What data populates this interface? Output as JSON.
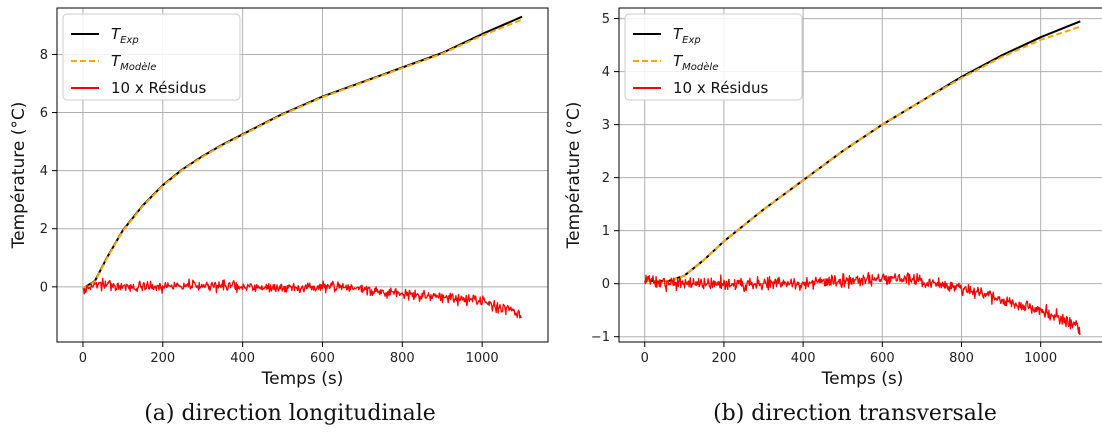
{
  "chart_data": [
    {
      "type": "line",
      "caption": "(a) direction longitudinale",
      "xlabel": "Temps (s)",
      "ylabel": "Température (°C)",
      "xlim": [
        -65,
        1165
      ],
      "ylim": [
        -1.9,
        9.6
      ],
      "xticks": [
        0,
        200,
        400,
        600,
        800,
        1000
      ],
      "yticks": [
        0,
        2,
        4,
        6,
        8
      ],
      "grid": true,
      "legend_position": "top-left",
      "series": [
        {
          "name": "T_Exp",
          "legend_main": "T",
          "legend_sub": "Exp",
          "color": "#000000",
          "style": "solid",
          "x": [
            0,
            30,
            60,
            100,
            150,
            200,
            250,
            300,
            350,
            400,
            500,
            600,
            700,
            800,
            900,
            1000,
            1100
          ],
          "y": [
            -0.05,
            0.2,
            1.0,
            1.95,
            2.8,
            3.5,
            4.05,
            4.5,
            4.9,
            5.25,
            5.95,
            6.55,
            7.05,
            7.55,
            8.05,
            8.7,
            9.3
          ]
        },
        {
          "name": "T_Modèle",
          "legend_main": "T",
          "legend_sub": "Modèle",
          "color": "#ffa500",
          "style": "dashed",
          "x": [
            0,
            30,
            60,
            100,
            150,
            200,
            250,
            300,
            350,
            400,
            500,
            600,
            700,
            800,
            900,
            1000,
            1100
          ],
          "y": [
            -0.05,
            0.18,
            0.98,
            1.93,
            2.78,
            3.48,
            4.03,
            4.48,
            4.88,
            5.23,
            5.93,
            6.53,
            7.03,
            7.53,
            8.03,
            8.65,
            9.2
          ]
        },
        {
          "name": "10 x Résidus",
          "legend_main": "10 x Résidus",
          "legend_sub": "",
          "color": "#ff0000",
          "style": "noisy",
          "noise": 0.09,
          "x": [
            0,
            50,
            100,
            200,
            300,
            400,
            500,
            600,
            650,
            700,
            800,
            900,
            1000,
            1050,
            1100
          ],
          "y": [
            -0.05,
            0.1,
            0.0,
            0.0,
            0.05,
            0.0,
            -0.05,
            0.0,
            0.0,
            -0.1,
            -0.25,
            -0.35,
            -0.5,
            -0.75,
            -0.95
          ]
        }
      ]
    },
    {
      "type": "line",
      "caption": "(b) direction transversale",
      "xlabel": "Temps (s)",
      "ylabel": "Température (°C)",
      "xlim": [
        -65,
        1165
      ],
      "ylim": [
        -1.1,
        5.2
      ],
      "xticks": [
        0,
        200,
        400,
        600,
        800,
        1000
      ],
      "yticks": [
        -1,
        0,
        1,
        2,
        3,
        4,
        5
      ],
      "grid": true,
      "legend_position": "top-left",
      "series": [
        {
          "name": "T_Exp",
          "legend_main": "T",
          "legend_sub": "Exp",
          "color": "#000000",
          "style": "solid",
          "x": [
            0,
            60,
            100,
            150,
            200,
            300,
            400,
            500,
            600,
            700,
            800,
            900,
            1000,
            1100
          ],
          "y": [
            0.05,
            0.05,
            0.15,
            0.45,
            0.8,
            1.4,
            1.95,
            2.5,
            3.0,
            3.45,
            3.9,
            4.3,
            4.65,
            4.95
          ]
        },
        {
          "name": "T_Modèle",
          "legend_main": "T",
          "legend_sub": "Modèle",
          "color": "#ffa500",
          "style": "dashed",
          "x": [
            0,
            60,
            100,
            150,
            200,
            300,
            400,
            500,
            600,
            700,
            800,
            900,
            1000,
            1100
          ],
          "y": [
            0.05,
            0.05,
            0.15,
            0.45,
            0.8,
            1.4,
            1.95,
            2.5,
            3.0,
            3.45,
            3.88,
            4.27,
            4.6,
            4.85
          ]
        },
        {
          "name": "10 x Résidus",
          "legend_main": "10 x Résidus",
          "legend_sub": "",
          "color": "#ff0000",
          "style": "noisy",
          "noise": 0.06,
          "x": [
            0,
            50,
            100,
            200,
            300,
            400,
            500,
            600,
            650,
            700,
            800,
            900,
            1000,
            1050,
            1100
          ],
          "y": [
            0.05,
            0.0,
            0.0,
            0.0,
            0.0,
            0.0,
            0.05,
            0.1,
            0.1,
            0.05,
            -0.1,
            -0.3,
            -0.5,
            -0.65,
            -0.85
          ]
        }
      ]
    }
  ]
}
